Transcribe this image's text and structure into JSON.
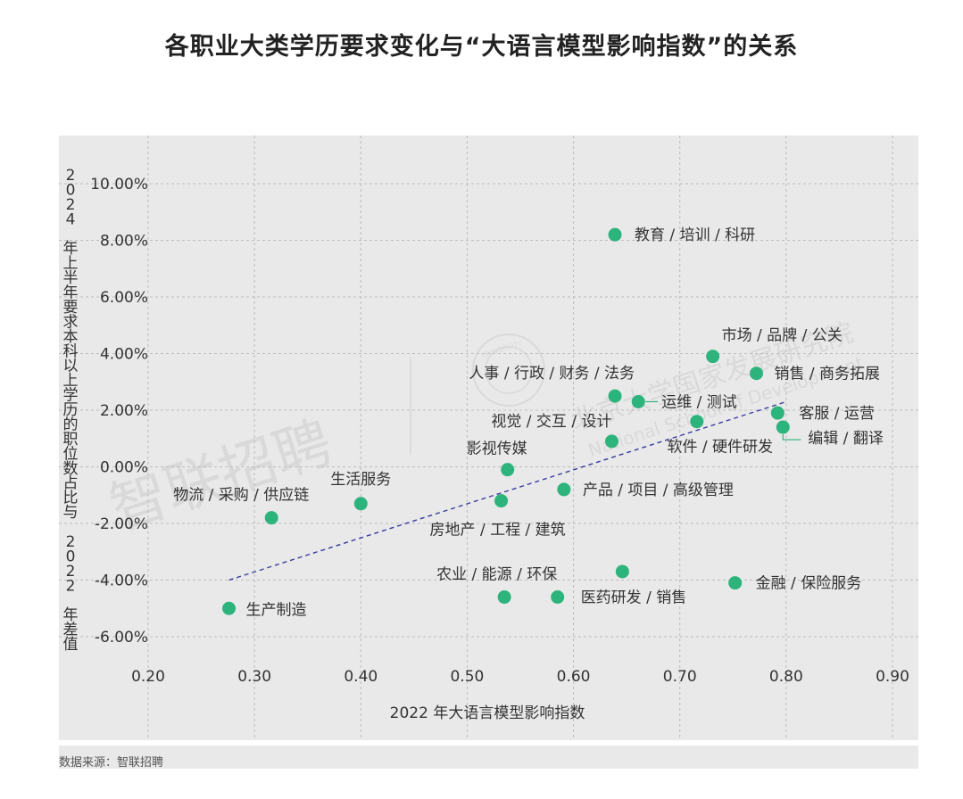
{
  "title": "各职业大类学历要求变化与“大语言模型影响指数”的关系",
  "source": "数据来源：智联招聘",
  "watermarks": {
    "left": "智联招聘",
    "right_cn": "北京大学国家发展研究院",
    "right_en": "National School of Development",
    "seal": "UNIVERSITY"
  },
  "colors": {
    "point": "#2db37c",
    "trend": "#3a3aa0",
    "panel": "#e9e9e9",
    "grid": "#bdbdbd"
  },
  "chart_data": {
    "type": "scatter",
    "title": "各职业大类学历要求变化与“大语言模型影响指数”的关系",
    "xlabel": "2022 年大语言模型影响指数",
    "ylabel": "2024 年上半年要求本科以上学历的职位数占比与 2022 年差值",
    "xlim": [
      0.2,
      0.9
    ],
    "ylim": [
      -6.0,
      10.0
    ],
    "x_ticks": [
      "0.20",
      "0.30",
      "0.40",
      "0.50",
      "0.60",
      "0.70",
      "0.80",
      "0.90"
    ],
    "y_ticks": [
      "10.00%",
      "8.00%",
      "6.00%",
      "4.00%",
      "2.00%",
      "0.00%",
      "-2.00%",
      "-4.00%",
      "-6.00%"
    ],
    "grid": true,
    "points": [
      {
        "label": "教育 / 培训 / 科研",
        "x": 0.639,
        "y": 8.2
      },
      {
        "label": "市场 / 品牌 / 公关",
        "x": 0.731,
        "y": 3.9
      },
      {
        "label": "销售 / 商务拓展",
        "x": 0.772,
        "y": 3.3
      },
      {
        "label": "人事 / 行政 / 财务 / 法务",
        "x": 0.639,
        "y": 2.5
      },
      {
        "label": "运维 / 测试",
        "x": 0.661,
        "y": 2.3
      },
      {
        "label": "客服 / 运营",
        "x": 0.792,
        "y": 1.9
      },
      {
        "label": "",
        "x": 0.716,
        "y": 1.6
      },
      {
        "label": "编辑 / 翻译",
        "x": 0.797,
        "y": 1.4
      },
      {
        "label": "视觉 / 交互 / 设计",
        "x": 0.636,
        "y": 0.9
      },
      {
        "label": "软件 / 硬件研发",
        "x": 0.716,
        "y": 1.6
      },
      {
        "label": "影视传媒",
        "x": 0.538,
        "y": -0.1
      },
      {
        "label": "产品 / 项目 / 高级管理",
        "x": 0.591,
        "y": -0.8
      },
      {
        "label": "房地产 / 工程 / 建筑",
        "x": 0.532,
        "y": -1.2
      },
      {
        "label": "生活服务",
        "x": 0.4,
        "y": -1.3
      },
      {
        "label": "物流 / 采购 / 供应链",
        "x": 0.316,
        "y": -1.8
      },
      {
        "label": "",
        "x": 0.646,
        "y": -3.7
      },
      {
        "label": "金融 / 保险服务",
        "x": 0.752,
        "y": -4.1
      },
      {
        "label": "农业 / 能源 / 环保",
        "x": 0.535,
        "y": -4.6
      },
      {
        "label": "医药研发 / 销售",
        "x": 0.585,
        "y": -4.6
      },
      {
        "label": "生产制造",
        "x": 0.276,
        "y": -5.0
      }
    ],
    "trendline": {
      "x": [
        0.276,
        0.8
      ],
      "y": [
        -4.0,
        2.3
      ]
    }
  }
}
